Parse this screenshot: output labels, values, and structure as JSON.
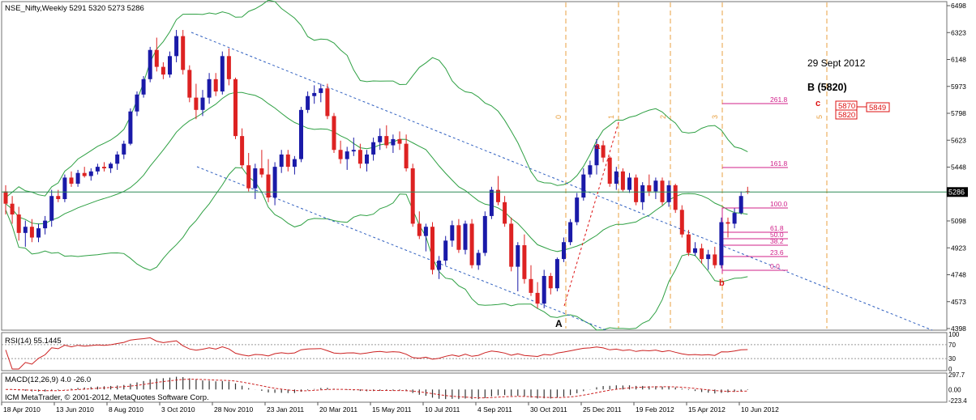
{
  "main_panel": {
    "header": "NSE_Nifty,Weekly  5291 5320 5273 5286",
    "y_ticks": [
      6498,
      6323,
      6148,
      5973,
      5798,
      5623,
      5448,
      5273,
      5098,
      4923,
      4748,
      4573,
      4398
    ],
    "price_marker": "5286",
    "annotations": {
      "date_text": "29 Sept 2012",
      "wave_b": "B (5820)",
      "wave_c": "c",
      "label_a_small": "a",
      "label_b_small": "b",
      "label_A": "A",
      "target_1": "5870",
      "target_2": "5820",
      "target_3": "5849"
    },
    "fib_levels": [
      "261.8",
      "161.8",
      "100.0",
      "61.8",
      "50.0",
      "38.2",
      "23.6",
      "0.0"
    ],
    "time_cycle_labels": [
      "0",
      "1",
      "2",
      "3",
      "5"
    ]
  },
  "rsi_panel": {
    "header": "RSI(14) 55.1445",
    "ticks": [
      "100",
      "70",
      "30",
      "0"
    ]
  },
  "macd_panel": {
    "header": "MACD(12,26,9) 4.0 -26.0",
    "ticks": [
      "297.7",
      "0.00",
      "-223.4"
    ],
    "copyright": "ICM MetaTrader, © 2001-2012, MetaQuotes Software Corp."
  },
  "x_axis": {
    "labels": [
      "18 Apr 2010",
      "13 Jun 2010",
      "8 Aug 2010",
      "3 Oct 2010",
      "28 Nov 2010",
      "23 Jan 2011",
      "20 Mar 2011",
      "15 May 2011",
      "10 Jul 2011",
      "4 Sep 2011",
      "30 Oct 2011",
      "25 Dec 2011",
      "19 Feb 2012",
      "15 Apr 2012",
      "10 Jun 2012"
    ]
  },
  "colors": {
    "bull": "#1a1aa8",
    "bear": "#dd2222",
    "band": "#2ea043",
    "fib": "#d0208a",
    "cycle": "#e8a040",
    "channel": "#3060c0",
    "osc_line": "#cc2020"
  },
  "chart_data": {
    "type": "candlestick",
    "title": "NSE_Nifty,Weekly",
    "last_ohlc": {
      "open": 5291,
      "high": 5320,
      "low": 5273,
      "close": 5286
    },
    "ylim": [
      4398,
      6498
    ],
    "x_start": "2010-04-18",
    "weeks": 114,
    "candles": [
      [
        5290,
        5330,
        5140,
        5210
      ],
      [
        5210,
        5260,
        5080,
        5140
      ],
      [
        5140,
        5190,
        4970,
        5020
      ],
      [
        5020,
        5100,
        4930,
        5060
      ],
      [
        5060,
        5110,
        4960,
        4990
      ],
      [
        4990,
        5080,
        4960,
        5050
      ],
      [
        5050,
        5130,
        5010,
        5100
      ],
      [
        5100,
        5300,
        5060,
        5260
      ],
      [
        5260,
        5300,
        5220,
        5240
      ],
      [
        5240,
        5400,
        5220,
        5380
      ],
      [
        5380,
        5420,
        5320,
        5340
      ],
      [
        5340,
        5430,
        5320,
        5410
      ],
      [
        5410,
        5450,
        5380,
        5390
      ],
      [
        5390,
        5440,
        5360,
        5420
      ],
      [
        5420,
        5470,
        5400,
        5450
      ],
      [
        5450,
        5480,
        5420,
        5440
      ],
      [
        5440,
        5480,
        5410,
        5470
      ],
      [
        5470,
        5550,
        5430,
        5530
      ],
      [
        5530,
        5620,
        5500,
        5600
      ],
      [
        5600,
        5830,
        5590,
        5810
      ],
      [
        5810,
        5940,
        5780,
        5920
      ],
      [
        5920,
        6040,
        5900,
        6020
      ],
      [
        6020,
        6230,
        6000,
        6210
      ],
      [
        6210,
        6290,
        6070,
        6100
      ],
      [
        6100,
        6130,
        6020,
        6050
      ],
      [
        6050,
        6200,
        6030,
        6170
      ],
      [
        6170,
        6340,
        6130,
        6300
      ],
      [
        6300,
        6340,
        6050,
        6080
      ],
      [
        6080,
        6110,
        5870,
        5900
      ],
      [
        5900,
        5990,
        5760,
        5820
      ],
      [
        5820,
        5950,
        5780,
        5900
      ],
      [
        5900,
        6060,
        5860,
        6020
      ],
      [
        6020,
        6060,
        5910,
        5940
      ],
      [
        5940,
        6200,
        5920,
        6170
      ],
      [
        6170,
        6220,
        5980,
        6020
      ],
      [
        6020,
        6030,
        5630,
        5650
      ],
      [
        5650,
        5700,
        5440,
        5460
      ],
      [
        5460,
        5540,
        5290,
        5310
      ],
      [
        5310,
        5470,
        5240,
        5440
      ],
      [
        5440,
        5560,
        5380,
        5400
      ],
      [
        5400,
        5500,
        5220,
        5250
      ],
      [
        5250,
        5480,
        5200,
        5450
      ],
      [
        5450,
        5560,
        5410,
        5530
      ],
      [
        5530,
        5560,
        5420,
        5450
      ],
      [
        5450,
        5520,
        5400,
        5500
      ],
      [
        5500,
        5840,
        5480,
        5820
      ],
      [
        5820,
        5940,
        5800,
        5910
      ],
      [
        5910,
        5980,
        5860,
        5930
      ],
      [
        5930,
        5990,
        5870,
        5960
      ],
      [
        5960,
        5990,
        5760,
        5780
      ],
      [
        5780,
        5800,
        5540,
        5560
      ],
      [
        5560,
        5620,
        5470,
        5500
      ],
      [
        5500,
        5580,
        5430,
        5550
      ],
      [
        5550,
        5640,
        5520,
        5560
      ],
      [
        5560,
        5600,
        5440,
        5470
      ],
      [
        5470,
        5560,
        5420,
        5530
      ],
      [
        5530,
        5640,
        5490,
        5610
      ],
      [
        5610,
        5700,
        5560,
        5650
      ],
      [
        5650,
        5720,
        5570,
        5590
      ],
      [
        5590,
        5660,
        5540,
        5630
      ],
      [
        5630,
        5680,
        5560,
        5600
      ],
      [
        5600,
        5660,
        5420,
        5440
      ],
      [
        5440,
        5470,
        5060,
        5080
      ],
      [
        5080,
        5160,
        4980,
        5000
      ],
      [
        5000,
        5080,
        4900,
        5060
      ],
      [
        5060,
        5090,
        4750,
        4780
      ],
      [
        4780,
        4870,
        4720,
        4840
      ],
      [
        4840,
        5000,
        4810,
        4970
      ],
      [
        4970,
        5100,
        4930,
        5070
      ],
      [
        5070,
        5110,
        4890,
        4910
      ],
      [
        4910,
        5100,
        4880,
        5080
      ],
      [
        5080,
        5110,
        4790,
        4810
      ],
      [
        4810,
        4910,
        4780,
        4890
      ],
      [
        4890,
        5160,
        4870,
        5130
      ],
      [
        5130,
        5320,
        5110,
        5300
      ],
      [
        5300,
        5390,
        5200,
        5220
      ],
      [
        5220,
        5260,
        5060,
        5080
      ],
      [
        5080,
        5120,
        4770,
        4800
      ],
      [
        4800,
        4960,
        4640,
        4940
      ],
      [
        4940,
        5010,
        4690,
        4720
      ],
      [
        4720,
        4810,
        4610,
        4630
      ],
      [
        4630,
        4700,
        4530,
        4560
      ],
      [
        4560,
        4780,
        4530,
        4740
      ],
      [
        4740,
        4760,
        4620,
        4660
      ],
      [
        4660,
        4860,
        4640,
        4850
      ],
      [
        4850,
        4990,
        4830,
        4960
      ],
      [
        4960,
        5110,
        4940,
        5090
      ],
      [
        5090,
        5280,
        5070,
        5250
      ],
      [
        5250,
        5440,
        5230,
        5400
      ],
      [
        5400,
        5490,
        5380,
        5460
      ],
      [
        5460,
        5630,
        5400,
        5590
      ],
      [
        5590,
        5620,
        5480,
        5510
      ],
      [
        5510,
        5520,
        5320,
        5340
      ],
      [
        5340,
        5450,
        5300,
        5420
      ],
      [
        5420,
        5440,
        5290,
        5300
      ],
      [
        5300,
        5410,
        5280,
        5380
      ],
      [
        5380,
        5400,
        5200,
        5220
      ],
      [
        5220,
        5350,
        5170,
        5330
      ],
      [
        5330,
        5400,
        5260,
        5290
      ],
      [
        5290,
        5380,
        5240,
        5360
      ],
      [
        5360,
        5380,
        5200,
        5220
      ],
      [
        5220,
        5360,
        5190,
        5330
      ],
      [
        5330,
        5340,
        5150,
        5170
      ],
      [
        5170,
        5200,
        4990,
        5010
      ],
      [
        5010,
        5040,
        4870,
        4890
      ],
      [
        4890,
        4960,
        4870,
        4920
      ],
      [
        4920,
        4950,
        4820,
        4850
      ],
      [
        4850,
        4910,
        4780,
        4880
      ],
      [
        4880,
        4930,
        4790,
        4810
      ],
      [
        4810,
        5120,
        4790,
        5090
      ],
      [
        5090,
        5120,
        4990,
        5080
      ],
      [
        5080,
        5180,
        5050,
        5150
      ],
      [
        5150,
        5290,
        5140,
        5260
      ],
      [
        5291,
        5320,
        5273,
        5286
      ]
    ]
  }
}
